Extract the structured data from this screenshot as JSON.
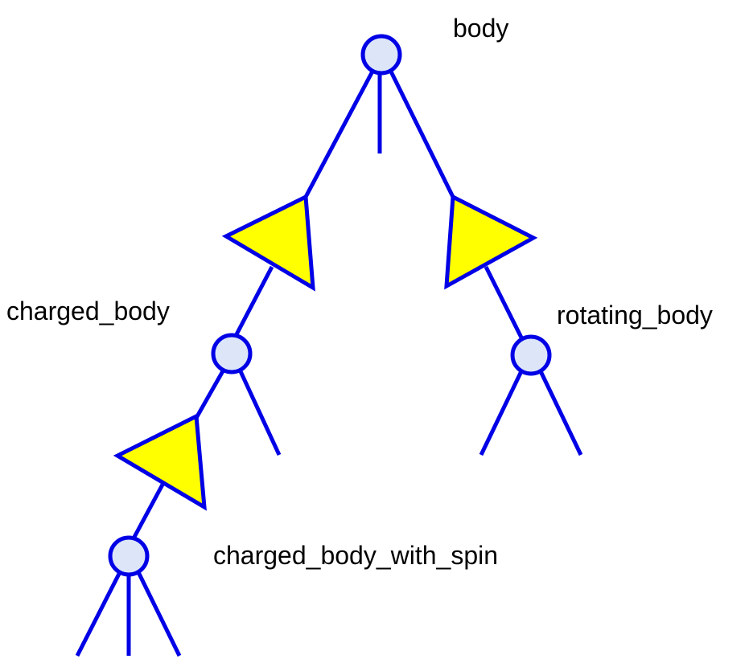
{
  "diagram": {
    "labels": {
      "body": "body",
      "charged_body": "charged_body",
      "rotating_body": "rotating_body",
      "charged_body_with_spin": "charged_body_with_spin"
    },
    "colors": {
      "edge": "#0000e6",
      "node_fill": "#dce6f8",
      "triangle_fill": "#ffff00",
      "text": "#000000"
    }
  }
}
